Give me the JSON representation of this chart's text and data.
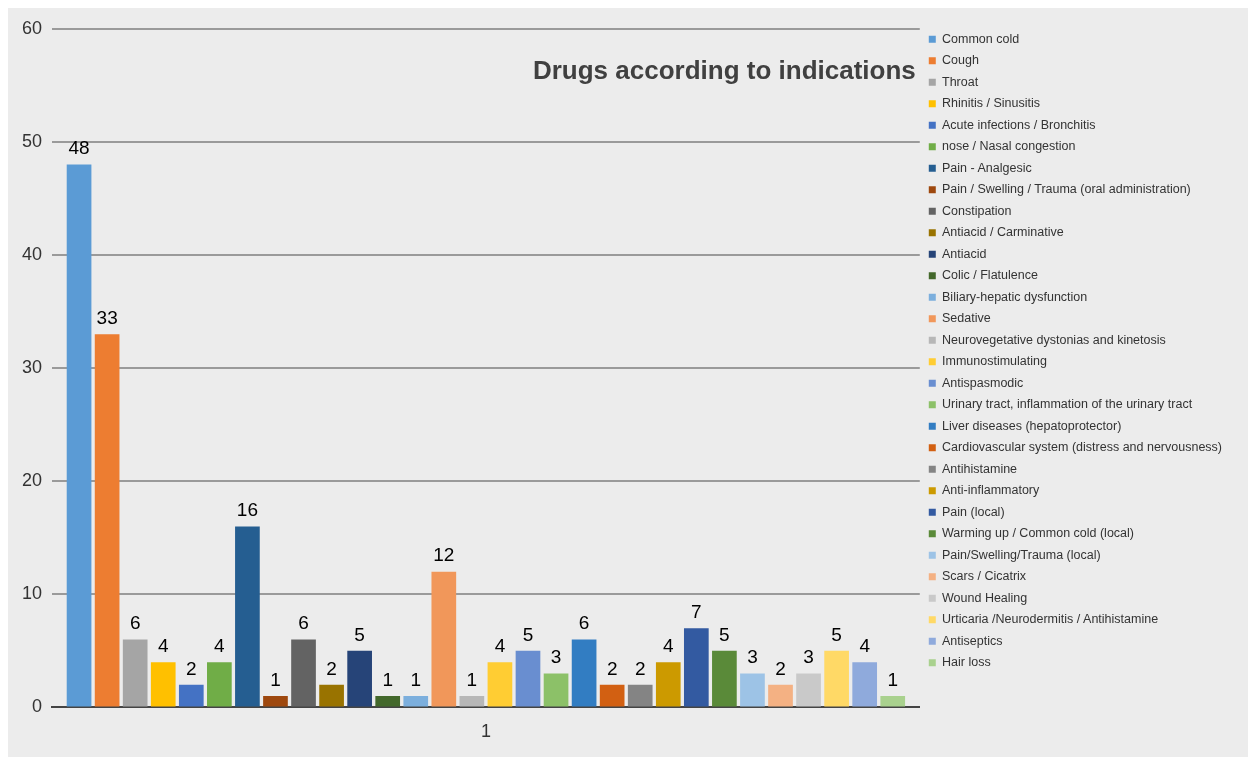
{
  "chart_data": {
    "type": "bar",
    "title": "Drugs according to indications",
    "categories": [
      "1"
    ],
    "ylim": [
      0,
      60
    ],
    "yticks": [
      0,
      10,
      20,
      30,
      40,
      50,
      60
    ],
    "grid": "y",
    "legend": "right",
    "data_labels": true,
    "series": [
      {
        "name": "Common cold",
        "color": "#5b9bd5",
        "values": [
          48
        ]
      },
      {
        "name": "Cough",
        "color": "#ed7d31",
        "values": [
          33
        ]
      },
      {
        "name": "Throat",
        "color": "#a5a5a5",
        "values": [
          6
        ]
      },
      {
        "name": "Rhinitis / Sinusitis",
        "color": "#ffc000",
        "values": [
          4
        ]
      },
      {
        "name": "Acute infections / Bronchitis",
        "color": "#4472c4",
        "values": [
          2
        ]
      },
      {
        "name": "nose / Nasal congestion",
        "color": "#70ad47",
        "values": [
          4
        ]
      },
      {
        "name": "Pain - Analgesic",
        "color": "#255e91",
        "values": [
          16
        ]
      },
      {
        "name": "Pain / Swelling / Trauma (oral administration)",
        "color": "#9e480e",
        "values": [
          1
        ]
      },
      {
        "name": "Constipation",
        "color": "#636363",
        "values": [
          6
        ]
      },
      {
        "name": "Antiacid / Carminative",
        "color": "#997300",
        "values": [
          2
        ]
      },
      {
        "name": "Antiacid",
        "color": "#264478",
        "values": [
          5
        ]
      },
      {
        "name": "Colic / Flatulence",
        "color": "#43682b",
        "values": [
          1
        ]
      },
      {
        "name": "Biliary-hepatic dysfunction",
        "color": "#7cafdd",
        "values": [
          1
        ]
      },
      {
        "name": "Sedative",
        "color": "#f1975a",
        "values": [
          12
        ]
      },
      {
        "name": "Neurovegetative dystonias and kinetosis",
        "color": "#b7b7b7",
        "values": [
          1
        ]
      },
      {
        "name": "Immunostimulating",
        "color": "#ffcd33",
        "values": [
          4
        ]
      },
      {
        "name": "Antispasmodic",
        "color": "#698ed0",
        "values": [
          5
        ]
      },
      {
        "name": "Urinary tract, inflammation of the urinary tract",
        "color": "#8cc168",
        "values": [
          3
        ]
      },
      {
        "name": "Liver diseases (hepatoprotector)",
        "color": "#327dc2",
        "values": [
          6
        ]
      },
      {
        "name": "Cardiovascular system (distress and nervousness)",
        "color": "#d26012",
        "values": [
          2
        ]
      },
      {
        "name": "Antihistamine",
        "color": "#848484",
        "values": [
          2
        ]
      },
      {
        "name": "Anti-inflammatory",
        "color": "#cc9a00",
        "values": [
          4
        ]
      },
      {
        "name": "Pain (local)",
        "color": "#335aa1",
        "values": [
          7
        ]
      },
      {
        "name": "Warming up / Common cold (local)",
        "color": "#5a8a39",
        "values": [
          5
        ]
      },
      {
        "name": "Pain/Swelling/Trauma (local)",
        "color": "#9dc3e6",
        "values": [
          3
        ]
      },
      {
        "name": "Scars / Cicatrix",
        "color": "#f4b183",
        "values": [
          2
        ]
      },
      {
        "name": "Wound Healing",
        "color": "#c9c9c9",
        "values": [
          3
        ]
      },
      {
        "name": "Urticaria /Neurodermitis / Antihistamine",
        "color": "#ffd966",
        "values": [
          5
        ]
      },
      {
        "name": "Antiseptics",
        "color": "#8faadc",
        "values": [
          4
        ]
      },
      {
        "name": "Hair loss",
        "color": "#a9d18e",
        "values": [
          1
        ]
      }
    ]
  }
}
